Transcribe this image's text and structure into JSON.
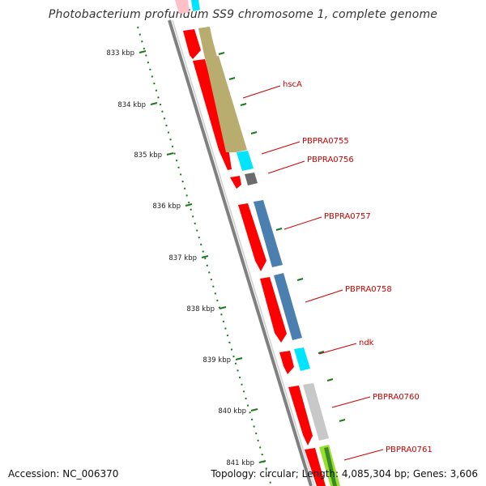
{
  "title": "Photobacterium profundum SS9 chromosome 1, complete genome",
  "accession_label": "Accession: NC_006370",
  "summary_label": "Topology: circular; Length: 4,085,304 bp; Genes: 3,606",
  "ticks": [
    "833 kbp",
    "834 kbp",
    "835 kbp",
    "836 kbp",
    "837 kbp",
    "838 kbp",
    "839 kbp",
    "840 kbp",
    "841 kbp"
  ],
  "genes": [
    {
      "name": "hscA"
    },
    {
      "name": "PBPRA0755"
    },
    {
      "name": "PBPRA0756"
    },
    {
      "name": "PBPRA0757"
    },
    {
      "name": "PBPRA0758"
    },
    {
      "name": "ndk"
    },
    {
      "name": "PBPRA0760"
    },
    {
      "name": "PBPRA0761"
    }
  ],
  "colors": {
    "cds": "#ff0000",
    "backbone": "#808080",
    "tick": "#1a7a1a",
    "label": "#cc0000",
    "cog_khaki": "#b8ad6e",
    "cog_cyan": "#00e5ff",
    "cog_dark": "#6b6b6b",
    "cog_steel": "#4a7fb0",
    "cog_light": "#c8c8c8",
    "cog_lime": "#99e02a"
  }
}
